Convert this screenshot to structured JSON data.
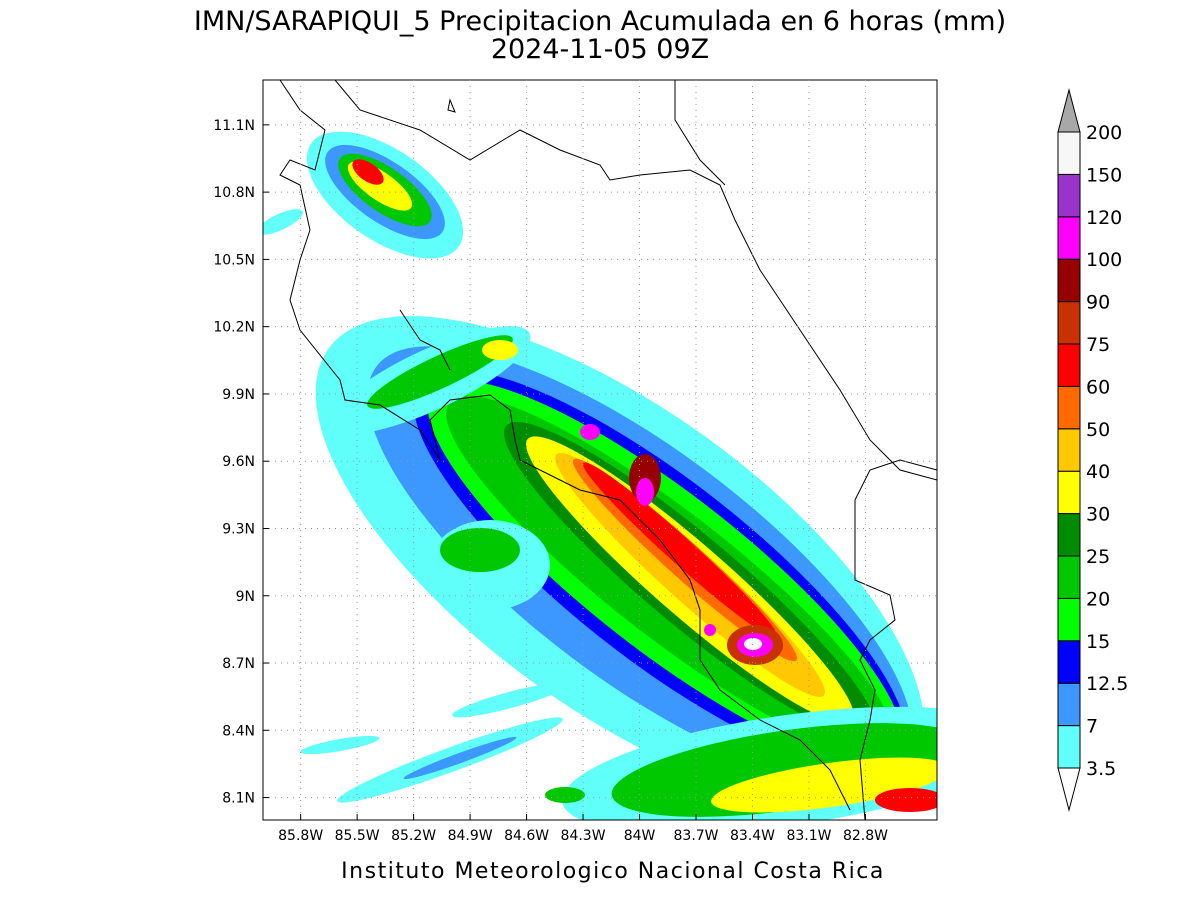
{
  "map": {
    "title": "IMN/SARAPIQUI_5 Precipitacion Acumulada en 6 horas (mm)",
    "subtitle": "2024-11-05 09Z",
    "footer": "Instituto Meteorologico Nacional Costa Rica",
    "lonlim": [
      -86.0,
      -82.42
    ],
    "latlim": [
      8.0,
      11.3
    ],
    "lon_ticks": [
      {
        "value": -85.8,
        "label": "85.8W"
      },
      {
        "value": -85.5,
        "label": "85.5W"
      },
      {
        "value": -85.2,
        "label": "85.2W"
      },
      {
        "value": -84.9,
        "label": "84.9W"
      },
      {
        "value": -84.6,
        "label": "84.6W"
      },
      {
        "value": -84.3,
        "label": "84.3W"
      },
      {
        "value": -84.0,
        "label": "84W"
      },
      {
        "value": -83.7,
        "label": "83.7W"
      },
      {
        "value": -83.4,
        "label": "83.4W"
      },
      {
        "value": -83.1,
        "label": "83.1W"
      },
      {
        "value": -82.8,
        "label": "82.8W"
      }
    ],
    "lat_ticks": [
      {
        "value": 11.1,
        "label": "11.1N"
      },
      {
        "value": 10.8,
        "label": "10.8N"
      },
      {
        "value": 10.5,
        "label": "10.5N"
      },
      {
        "value": 10.2,
        "label": "10.2N"
      },
      {
        "value": 9.9,
        "label": "9.9N"
      },
      {
        "value": 9.6,
        "label": "9.6N"
      },
      {
        "value": 9.3,
        "label": "9.3N"
      },
      {
        "value": 9.0,
        "label": "9N"
      },
      {
        "value": 8.7,
        "label": "8.7N"
      },
      {
        "value": 8.4,
        "label": "8.4N"
      },
      {
        "value": 8.1,
        "label": "8.1N"
      }
    ],
    "grid": true,
    "legend": {
      "levels": [
        3.5,
        7,
        12.5,
        15,
        20,
        25,
        30,
        40,
        50,
        60,
        75,
        90,
        100,
        120,
        150,
        200
      ],
      "colors": [
        "#60fffa",
        "#3c98ff",
        "#0000ff",
        "#00ff00",
        "#00c800",
        "#008c00",
        "#ffff00",
        "#ffc800",
        "#ff6a00",
        "#ff0000",
        "#c83200",
        "#960000",
        "#ff00ff",
        "#9933cc",
        "#f7f7f7"
      ],
      "over_color": "#a8a8a8",
      "under_color": "#ffffff"
    }
  }
}
